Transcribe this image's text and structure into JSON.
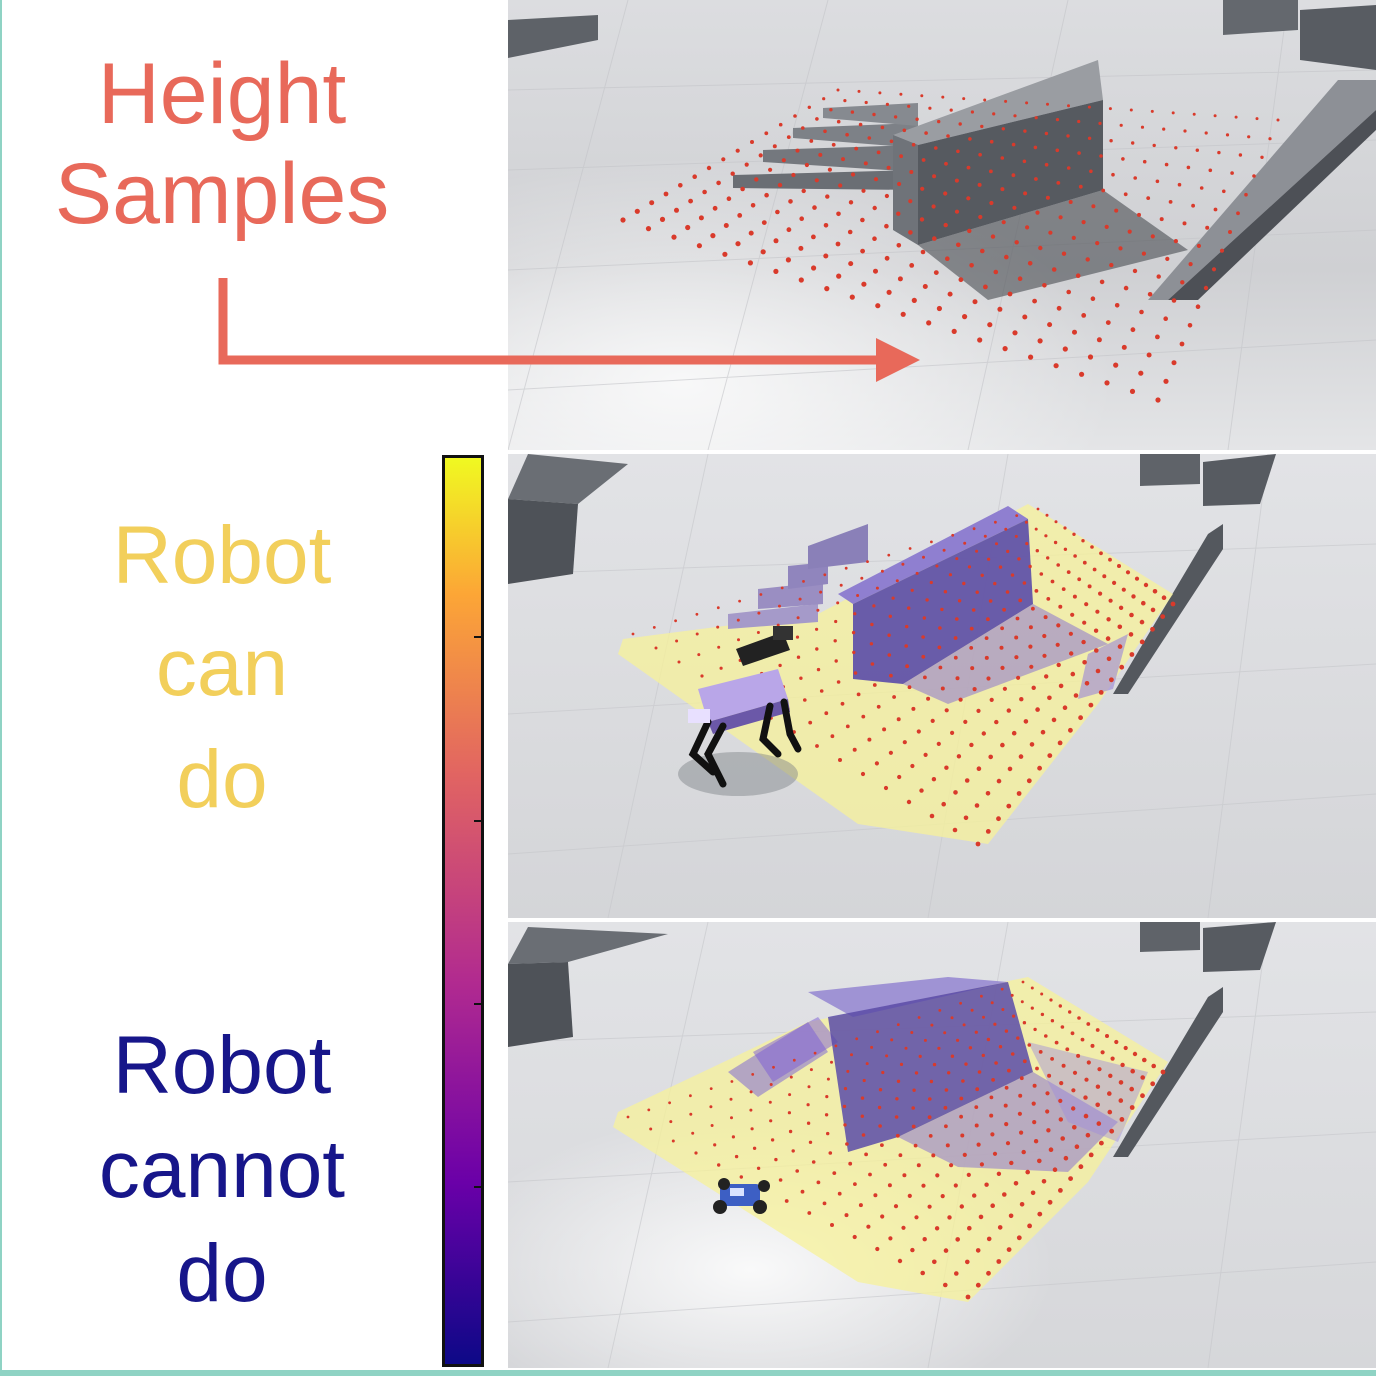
{
  "labels": {
    "height_samples": [
      "Height",
      "Samples"
    ],
    "robot_can_do": [
      "Robot",
      "can",
      "do"
    ],
    "robot_cannot_do": [
      "Robot",
      "cannot",
      "do"
    ]
  },
  "colors": {
    "height_label": "#e8695a",
    "can_label": "#f2cf5b",
    "cannot_label": "#17168a",
    "arrow": "#e8695a",
    "sample_dot": "#d93a2b",
    "can_overlay": "#f7f19a",
    "cannot_overlay": "#7b5bd6",
    "accent_border": "#8fd3c4"
  },
  "colorbar": {
    "colormap": "plasma",
    "top_label": "can",
    "bottom_label": "cannot"
  },
  "icons": {
    "legged_robot": "quadruped-robot-icon",
    "wheeled_robot": "wheeled-rover-icon"
  }
}
